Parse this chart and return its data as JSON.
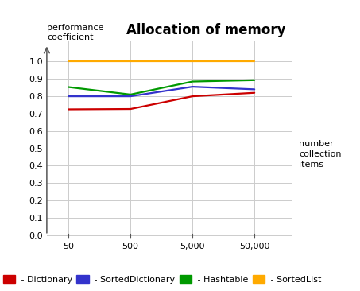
{
  "title": "Allocation of memory",
  "xlabel_lines": [
    "number",
    "collection",
    "items"
  ],
  "ylabel_lines": [
    "performance",
    "coefficient"
  ],
  "x_labels": [
    "50",
    "500",
    "5,000",
    "50,000"
  ],
  "x_positions": [
    0,
    1,
    2,
    3
  ],
  "series": {
    "Dictionary": {
      "color": "#cc0000",
      "values": [
        0.725,
        0.727,
        0.8,
        0.82
      ]
    },
    "SortedDictionary": {
      "color": "#3333cc",
      "values": [
        0.8,
        0.8,
        0.855,
        0.84
      ]
    },
    "Hashtable": {
      "color": "#009900",
      "values": [
        0.853,
        0.81,
        0.885,
        0.893
      ]
    },
    "SortedList": {
      "color": "#ffaa00",
      "values": [
        1.0,
        1.0,
        1.0,
        1.0
      ]
    }
  },
  "ylim": [
    -0.02,
    1.12
  ],
  "yticks": [
    0.0,
    0.1,
    0.2,
    0.3,
    0.4,
    0.5,
    0.6,
    0.7,
    0.8,
    0.9,
    1.0
  ],
  "bg_color": "#ffffff",
  "grid_color": "#cccccc",
  "arrow_color": "#555555",
  "tick_fontsize": 8,
  "title_fontsize": 12,
  "label_fontsize": 8,
  "legend_fontsize": 8
}
